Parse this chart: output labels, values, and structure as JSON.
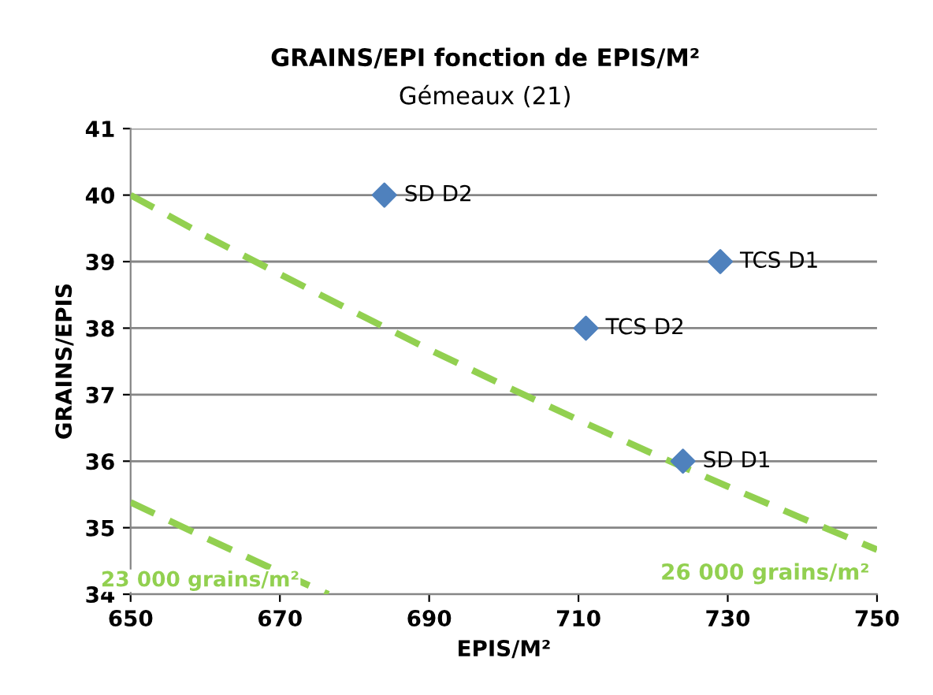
{
  "chart_data": {
    "type": "scatter",
    "title": "GRAINS/EPI fonction de EPIS/M²",
    "subtitle": "Gémeaux (21)",
    "xlabel": "EPIS/M²",
    "ylabel": "GRAINS/EPIS",
    "xlim": [
      650,
      750
    ],
    "xticks": [
      650,
      670,
      690,
      710,
      730,
      750
    ],
    "ylim": [
      34,
      41
    ],
    "yticks": [
      34,
      35,
      36,
      37,
      38,
      39,
      40,
      41
    ],
    "grid": "y",
    "legend": false,
    "series": [
      {
        "color": "#4f81bd",
        "marker": "diamond",
        "x": [
          684,
          729,
          711,
          724
        ],
        "values": [
          40,
          39,
          38,
          36
        ]
      },
      {
        "type": "line",
        "name": "26 000 grains/m²",
        "color": "#92d050",
        "line_style": "dashed",
        "marker": "none",
        "x": [
          650,
          660,
          670,
          680,
          690,
          700,
          710,
          720,
          730,
          740,
          750
        ],
        "values": [
          40,
          39.39,
          38.81,
          38.24,
          37.68,
          37.14,
          36.62,
          36.11,
          35.62,
          35.14,
          34.67
        ]
      },
      {
        "type": "line",
        "name": "23 000 grains/m²",
        "color": "#92d050",
        "line_style": "dashed",
        "marker": "none",
        "x": [
          650,
          660,
          670,
          676.5
        ],
        "values": [
          35.38,
          34.85,
          34.33,
          34.0
        ]
      }
    ],
    "annotations": [
      {
        "text": "SD D2",
        "x": 684,
        "y": 40
      },
      {
        "text": "TCS D1",
        "x": 729,
        "y": 39
      },
      {
        "text": "TCS D2",
        "x": 711,
        "y": 38
      },
      {
        "text": "SD D1",
        "x": 724,
        "y": 36
      }
    ]
  }
}
